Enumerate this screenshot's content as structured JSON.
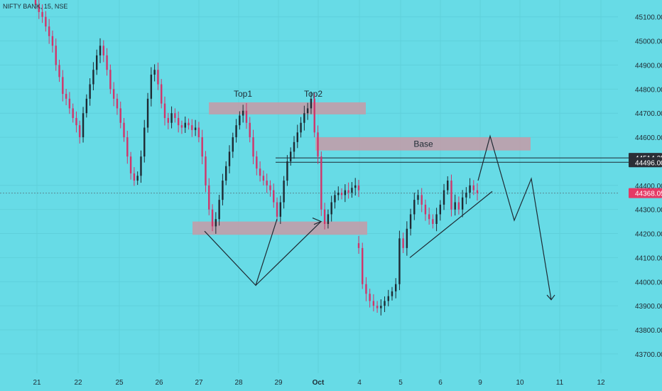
{
  "chart_data": {
    "type": "candlestick",
    "symbol_label": "NIFTY BANK, 15, NSE",
    "y_ticks": [
      45100,
      45000,
      44900,
      44800,
      44700,
      44600,
      44400,
      44300,
      44200,
      44100,
      44000,
      43900,
      43800,
      43700
    ],
    "y_range": [
      43620,
      45170
    ],
    "x_ticks": [
      "21",
      "22",
      "25",
      "26",
      "27",
      "28",
      "29",
      "Oct",
      "4",
      "5",
      "6",
      "9",
      "10",
      "11",
      "12"
    ],
    "price_labels": [
      {
        "value": "44514.25",
        "color": "#2b2f36"
      },
      {
        "value": "44496.00",
        "color": "#2b2f36"
      },
      {
        "value": "44368.05",
        "color": "#e53965"
      }
    ],
    "current_price": 44368.05,
    "level_lines": [
      44514.25,
      44496.0
    ],
    "zones": [
      {
        "label": "Top1",
        "from": 44695,
        "to": 44745
      },
      {
        "label": "Top2",
        "from": 44695,
        "to": 44745
      },
      {
        "label": "Base",
        "from": 44545,
        "to": 44600
      },
      {
        "label": "",
        "from": 44195,
        "to": 44250
      }
    ],
    "annotations": [
      "Top1",
      "Top2",
      "Base"
    ],
    "candles_close_path": [
      45150,
      45120,
      45100,
      45060,
      45020,
      44980,
      44900,
      44850,
      44780,
      44760,
      44720,
      44680,
      44650,
      44600,
      44700,
      44760,
      44820,
      44880,
      44940,
      44980,
      44940,
      44880,
      44800,
      44760,
      44720,
      44660,
      44600,
      44520,
      44450,
      44420,
      44440,
      44520,
      44640,
      44760,
      44860,
      44880,
      44820,
      44740,
      44680,
      44660,
      44700,
      44680,
      44650,
      44640,
      44660,
      44650,
      44630,
      44640,
      44600,
      44520,
      44400,
      44300,
      44230,
      44260,
      44340,
      44420,
      44480,
      44540,
      44600,
      44650,
      44690,
      44710,
      44660,
      44600,
      44520,
      44470,
      44440,
      44420,
      44400,
      44380,
      44330,
      44270,
      44330,
      44420,
      44500,
      44540,
      44580,
      44620,
      44660,
      44700,
      44720,
      44760,
      44620,
      44520,
      44300,
      44240,
      44280,
      44330,
      44360,
      44370,
      44360,
      44380,
      44370,
      44390,
      44400,
      44380,
      44140,
      43990,
      43950,
      43920,
      43900,
      43890,
      43900,
      43920,
      43940,
      43960,
      43990,
      44180,
      44140,
      44220,
      44280,
      44340,
      44360,
      44320,
      44280,
      44260,
      44240,
      44280,
      44320,
      44380,
      44420,
      44300,
      44330,
      44300,
      44350,
      44370,
      44400,
      44380,
      44368
    ],
    "grid": true
  }
}
